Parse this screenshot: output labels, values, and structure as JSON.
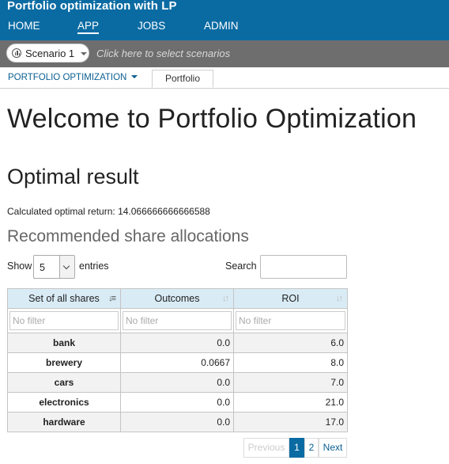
{
  "header": {
    "app_title": "Portfolio optimization with LP",
    "nav": [
      {
        "label": "HOME"
      },
      {
        "label": "APP"
      },
      {
        "label": "JOBS"
      },
      {
        "label": "ADMIN"
      }
    ]
  },
  "scenario_bar": {
    "selected": "Scenario 1",
    "hint": "Click here to select scenarios"
  },
  "subnav": {
    "dropdown_label": "PORTFOLIO OPTIMIZATION",
    "tab_label": "Portfolio"
  },
  "content": {
    "welcome_title": "Welcome to Portfolio Optimization",
    "result_title": "Optimal result",
    "optimal_return_text": "Calculated optimal return: 14.066666666666588",
    "allocations_title": "Recommended share allocations"
  },
  "table_controls": {
    "show_label": "Show",
    "entries_value": "5",
    "entries_label": "entries",
    "search_label": "Search"
  },
  "table": {
    "columns": [
      "Set of all shares",
      "Outcomes",
      "ROI"
    ],
    "filter_placeholder": "No filter",
    "rows": [
      {
        "name": "bank",
        "outcome": "0.0",
        "roi": "6.0"
      },
      {
        "name": "brewery",
        "outcome": "0.0667",
        "roi": "8.0"
      },
      {
        "name": "cars",
        "outcome": "0.0",
        "roi": "7.0"
      },
      {
        "name": "electronics",
        "outcome": "0.0",
        "roi": "21.0"
      },
      {
        "name": "hardware",
        "outcome": "0.0",
        "roi": "17.0"
      }
    ]
  },
  "pagination": {
    "previous": "Previous",
    "pages": [
      "1",
      "2"
    ],
    "next": "Next"
  },
  "colors": {
    "header_bg": "#0a6ba3",
    "scenario_bar_bg": "#6e6e6e",
    "table_header_bg": "#d9ebf5"
  }
}
